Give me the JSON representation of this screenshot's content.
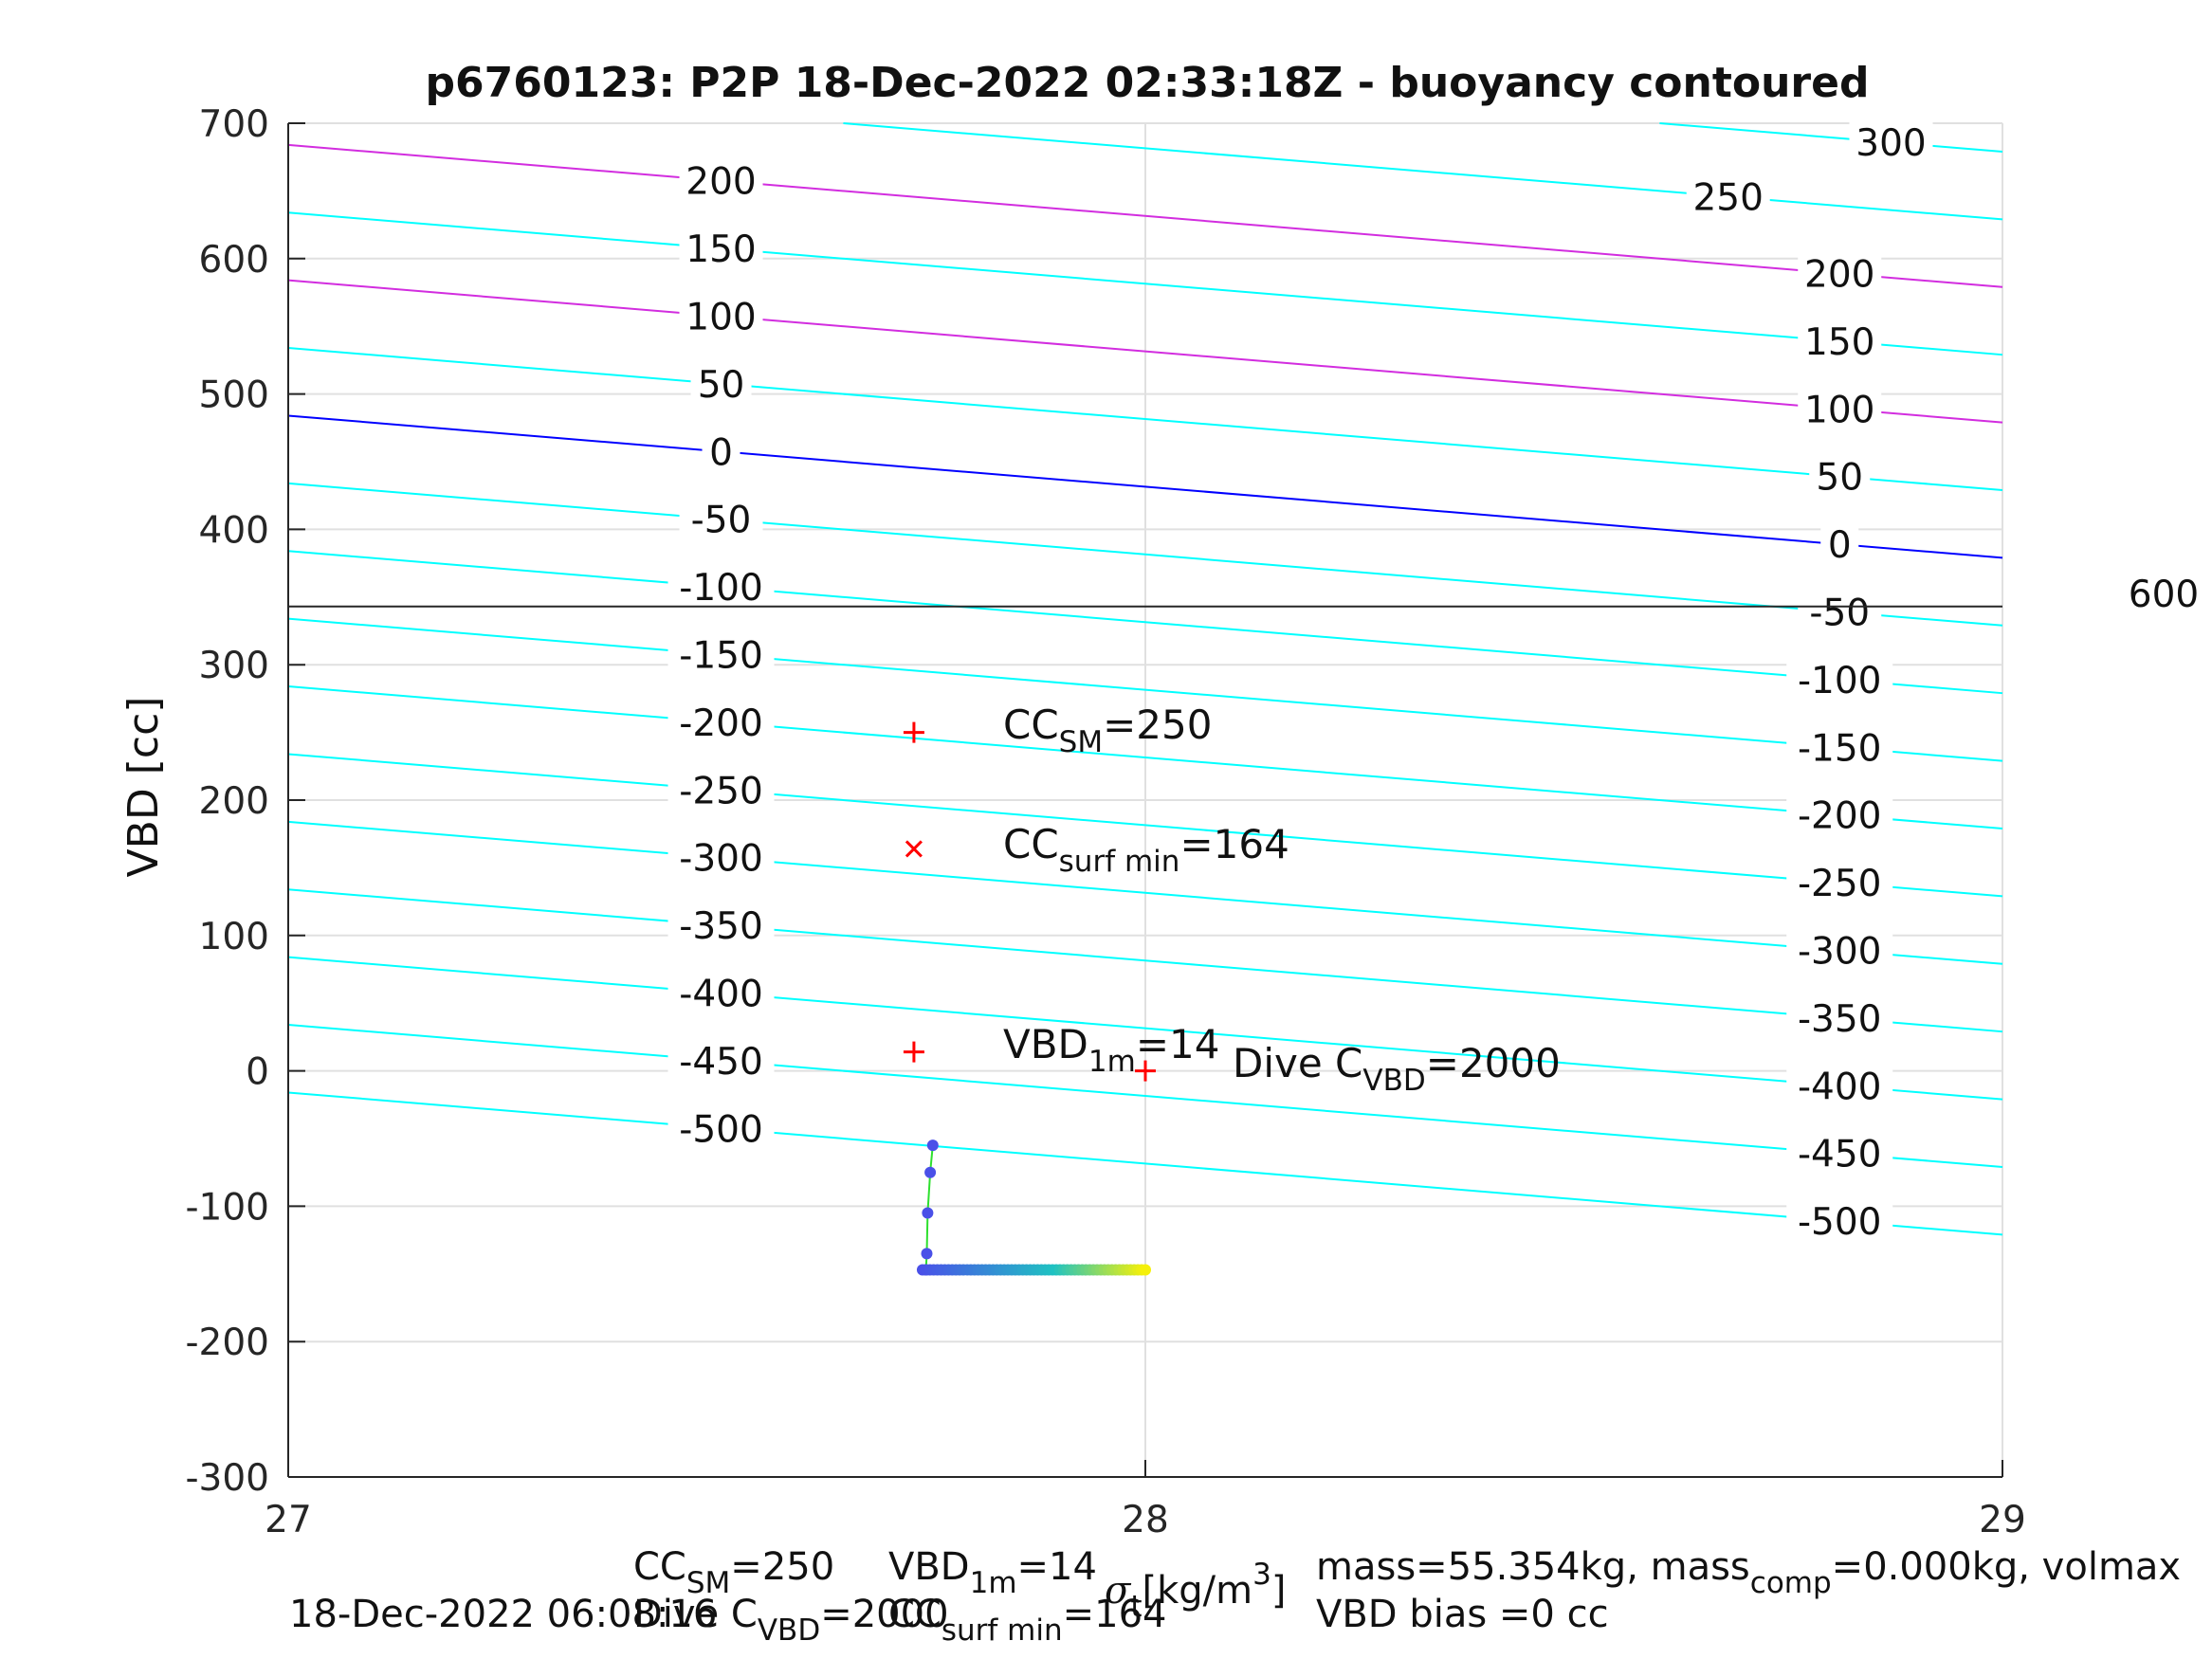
{
  "chart_data": {
    "type": "scatter",
    "title": "p6760123: P2P 18-Dec-2022 02:33:18Z - buoyancy contoured",
    "ylabel": "VBD [cc]",
    "xlabel_main": "[kg/m",
    "xlabel_sup": "3",
    "xlabel_close": "]",
    "xlim": [
      27,
      29
    ],
    "ylim": [
      -300,
      700
    ],
    "xticks": [
      "27",
      "28",
      "29"
    ],
    "yticks": [
      "700",
      "600",
      "500",
      "400",
      "300",
      "200",
      "100",
      "0",
      "-100",
      "-200",
      "-300"
    ],
    "grid": true,
    "ref_line": {
      "y": 343,
      "label": "600"
    },
    "buoyancy_contours": {
      "cyan": [
        -500,
        -450,
        -400,
        -350,
        -300,
        -250,
        -200,
        -150,
        -100,
        -50,
        50,
        150,
        250,
        300
      ],
      "magenta": [
        100,
        200
      ],
      "blue": [
        0
      ],
      "left_labels": [
        "200",
        "150",
        "100",
        "50",
        "0",
        "-50",
        "-100",
        "-150",
        "-200",
        "-250",
        "-300",
        "-350",
        "-400",
        "-450",
        "-500"
      ],
      "right_labels": [
        "300",
        "250",
        "200",
        "150",
        "100",
        "50",
        "0",
        "-50",
        "-100",
        "-150",
        "-200",
        "-250",
        "-300",
        "-350",
        "-400",
        "-450",
        "-500"
      ]
    },
    "markers": {
      "cc_sm": {
        "x": 27.73,
        "y": 250,
        "symbol": "+",
        "color": "#ff0000"
      },
      "cc_surf_min": {
        "x": 27.73,
        "y": 164,
        "symbol": "x",
        "color": "#ff0000"
      },
      "vbd_1m": {
        "x": 27.73,
        "y": 14,
        "symbol": "+",
        "color": "#ff0000"
      },
      "dive_c_vbd": {
        "x": 28.0,
        "y": 0,
        "symbol": "+",
        "color": "#ff0000"
      }
    },
    "annotations": {
      "cc_sm": {
        "main": "CC",
        "sub": "SM",
        "value": "=250"
      },
      "cc_surf_min": {
        "main": "CC",
        "sub": "surf min",
        "value": "=164"
      },
      "vbd_1m": {
        "main": "VBD",
        "sub": "1m",
        "value": "=14"
      },
      "dive_c_vbd": {
        "main": "Dive C",
        "sub": "VBD",
        "value": "=2000"
      }
    },
    "profile": {
      "vertical_x": [
        27.752,
        27.749,
        27.746,
        27.745,
        27.744
      ],
      "vertical_y": [
        -55,
        -75,
        -105,
        -135,
        -147
      ],
      "horizontal_x_start": 27.74,
      "horizontal_x_end": 28.0,
      "horizontal_y": -147,
      "color_start": "#4a50e8",
      "color_mid": "#1fc2c2",
      "color_end": "#f5f00a",
      "line_color": "#2ee02e"
    },
    "colors": {
      "cyan": "#00ffff",
      "magenta": "#d22ddf",
      "blue": "#0000ff",
      "grid": "#e0e0e0",
      "axis": "#262626"
    }
  },
  "footer": {
    "date": "18-Dec-2022 06:08:16",
    "cc_sm": {
      "main": "CC",
      "sub": "SM",
      "value": "=250"
    },
    "dive_c_vbd": {
      "main": "Dive C",
      "sub": "VBD",
      "value": "=2000"
    },
    "vbd_1m": {
      "main": "VBD",
      "sub": "1m",
      "value": "=14"
    },
    "cc_surf_min": {
      "main": "CC",
      "sub": "surf min",
      "value": "=164"
    },
    "mass": {
      "main": "mass=55.354kg, mass",
      "sub": "comp",
      "value": "=0.000kg, volmax"
    },
    "vbd_bias": "VBD bias =0 cc"
  }
}
